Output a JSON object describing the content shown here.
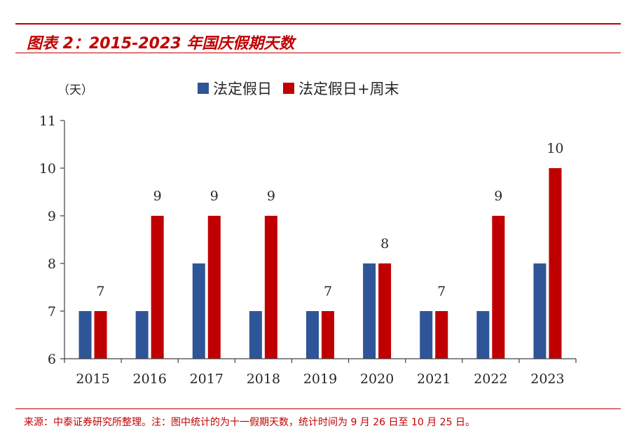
{
  "header": {
    "title": "图表 2：2015-2023 年国庆假期天数"
  },
  "footer": {
    "source": "来源：中泰证券研究所整理。注：图中统计的为十一假期天数，统计时间为 9 月 26 日至 10 月 25 日。"
  },
  "colors": {
    "accent": "#c00000",
    "series_blue": "#2e5597",
    "series_red": "#c00000",
    "axis": "#404040"
  },
  "chart_data": {
    "type": "bar",
    "title": "",
    "xlabel": "",
    "ylabel": "（天）",
    "ylim": [
      6,
      11
    ],
    "yticks": [
      "6",
      "7",
      "8",
      "9",
      "10",
      "11"
    ],
    "categories": [
      "2015",
      "2016",
      "2017",
      "2018",
      "2019",
      "2020",
      "2021",
      "2022",
      "2023"
    ],
    "legend_position": "top",
    "grid": false,
    "series": [
      {
        "name": "法定假日",
        "color": "#2e5597",
        "values": [
          7,
          7,
          8,
          7,
          7,
          8,
          7,
          7,
          8
        ],
        "labels": []
      },
      {
        "name": "法定假日+周末",
        "color": "#c00000",
        "values": [
          7,
          9,
          9,
          9,
          7,
          8,
          7,
          9,
          10
        ],
        "labels": [
          "7",
          "9",
          "9",
          "9",
          "7",
          "8",
          "7",
          "9",
          "10"
        ]
      }
    ]
  }
}
